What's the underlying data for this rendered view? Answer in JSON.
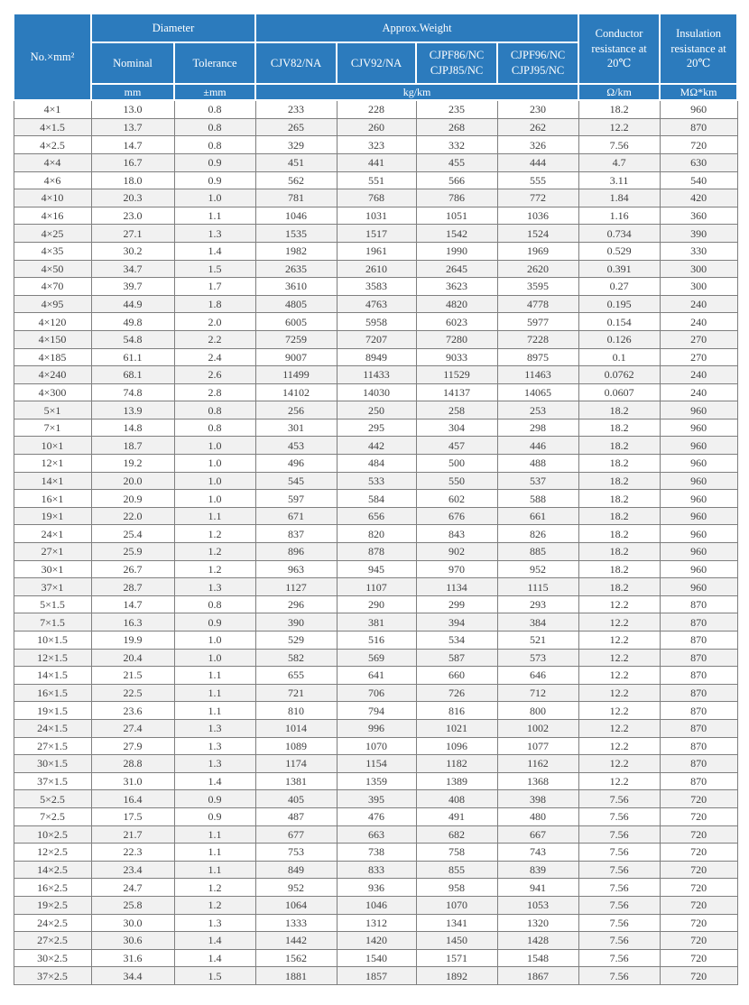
{
  "table": {
    "header": {
      "no_label": "No.×mm²",
      "diameter_group": "Diameter",
      "weight_group": "Approx.Weight",
      "sub_columns": {
        "nominal": "Nominal",
        "tolerance": "Tolerance",
        "cjv82": "CJV82/NA",
        "cjv92": "CJV92/NA",
        "cjpf86": "CJPF86/NC\nCJPJ85/NC",
        "cjpf96": "CJPF96/NC\nCJPJ95/NC"
      },
      "conductor_label": "Conductor resistance at 20℃",
      "insulation_label": "Insulation resistance at 20℃",
      "units": {
        "nominal": "mm",
        "tolerance": "±mm",
        "weight": "kg/km",
        "conductor": "Ω/km",
        "insulation": "MΩ*km"
      }
    },
    "colors": {
      "header_bg": "#2c7bbd",
      "header_text": "#ffffff",
      "row_bg": "#ffffff",
      "row_alt_bg": "#f1f1f1",
      "border": "#7f7f7f",
      "text": "#3f3f3f"
    },
    "rows": [
      [
        "4×1",
        "13.0",
        "0.8",
        "233",
        "228",
        "235",
        "230",
        "18.2",
        "960"
      ],
      [
        "4×1.5",
        "13.7",
        "0.8",
        "265",
        "260",
        "268",
        "262",
        "12.2",
        "870"
      ],
      [
        "4×2.5",
        "14.7",
        "0.8",
        "329",
        "323",
        "332",
        "326",
        "7.56",
        "720"
      ],
      [
        "4×4",
        "16.7",
        "0.9",
        "451",
        "441",
        "455",
        "444",
        "4.7",
        "630"
      ],
      [
        "4×6",
        "18.0",
        "0.9",
        "562",
        "551",
        "566",
        "555",
        "3.11",
        "540"
      ],
      [
        "4×10",
        "20.3",
        "1.0",
        "781",
        "768",
        "786",
        "772",
        "1.84",
        "420"
      ],
      [
        "4×16",
        "23.0",
        "1.1",
        "1046",
        "1031",
        "1051",
        "1036",
        "1.16",
        "360"
      ],
      [
        "4×25",
        "27.1",
        "1.3",
        "1535",
        "1517",
        "1542",
        "1524",
        "0.734",
        "390"
      ],
      [
        "4×35",
        "30.2",
        "1.4",
        "1982",
        "1961",
        "1990",
        "1969",
        "0.529",
        "330"
      ],
      [
        "4×50",
        "34.7",
        "1.5",
        "2635",
        "2610",
        "2645",
        "2620",
        "0.391",
        "300"
      ],
      [
        "4×70",
        "39.7",
        "1.7",
        "3610",
        "3583",
        "3623",
        "3595",
        "0.27",
        "300"
      ],
      [
        "4×95",
        "44.9",
        "1.8",
        "4805",
        "4763",
        "4820",
        "4778",
        "0.195",
        "240"
      ],
      [
        "4×120",
        "49.8",
        "2.0",
        "6005",
        "5958",
        "6023",
        "5977",
        "0.154",
        "240"
      ],
      [
        "4×150",
        "54.8",
        "2.2",
        "7259",
        "7207",
        "7280",
        "7228",
        "0.126",
        "270"
      ],
      [
        "4×185",
        "61.1",
        "2.4",
        "9007",
        "8949",
        "9033",
        "8975",
        "0.1",
        "270"
      ],
      [
        "4×240",
        "68.1",
        "2.6",
        "11499",
        "11433",
        "11529",
        "11463",
        "0.0762",
        "240"
      ],
      [
        "4×300",
        "74.8",
        "2.8",
        "14102",
        "14030",
        "14137",
        "14065",
        "0.0607",
        "240"
      ],
      [
        "5×1",
        "13.9",
        "0.8",
        "256",
        "250",
        "258",
        "253",
        "18.2",
        "960"
      ],
      [
        "7×1",
        "14.8",
        "0.8",
        "301",
        "295",
        "304",
        "298",
        "18.2",
        "960"
      ],
      [
        "10×1",
        "18.7",
        "1.0",
        "453",
        "442",
        "457",
        "446",
        "18.2",
        "960"
      ],
      [
        "12×1",
        "19.2",
        "1.0",
        "496",
        "484",
        "500",
        "488",
        "18.2",
        "960"
      ],
      [
        "14×1",
        "20.0",
        "1.0",
        "545",
        "533",
        "550",
        "537",
        "18.2",
        "960"
      ],
      [
        "16×1",
        "20.9",
        "1.0",
        "597",
        "584",
        "602",
        "588",
        "18.2",
        "960"
      ],
      [
        "19×1",
        "22.0",
        "1.1",
        "671",
        "656",
        "676",
        "661",
        "18.2",
        "960"
      ],
      [
        "24×1",
        "25.4",
        "1.2",
        "837",
        "820",
        "843",
        "826",
        "18.2",
        "960"
      ],
      [
        "27×1",
        "25.9",
        "1.2",
        "896",
        "878",
        "902",
        "885",
        "18.2",
        "960"
      ],
      [
        "30×1",
        "26.7",
        "1.2",
        "963",
        "945",
        "970",
        "952",
        "18.2",
        "960"
      ],
      [
        "37×1",
        "28.7",
        "1.3",
        "1127",
        "1107",
        "1134",
        "1115",
        "18.2",
        "960"
      ],
      [
        "5×1.5",
        "14.7",
        "0.8",
        "296",
        "290",
        "299",
        "293",
        "12.2",
        "870"
      ],
      [
        "7×1.5",
        "16.3",
        "0.9",
        "390",
        "381",
        "394",
        "384",
        "12.2",
        "870"
      ],
      [
        "10×1.5",
        "19.9",
        "1.0",
        "529",
        "516",
        "534",
        "521",
        "12.2",
        "870"
      ],
      [
        "12×1.5",
        "20.4",
        "1.0",
        "582",
        "569",
        "587",
        "573",
        "12.2",
        "870"
      ],
      [
        "14×1.5",
        "21.5",
        "1.1",
        "655",
        "641",
        "660",
        "646",
        "12.2",
        "870"
      ],
      [
        "16×1.5",
        "22.5",
        "1.1",
        "721",
        "706",
        "726",
        "712",
        "12.2",
        "870"
      ],
      [
        "19×1.5",
        "23.6",
        "1.1",
        "810",
        "794",
        "816",
        "800",
        "12.2",
        "870"
      ],
      [
        "24×1.5",
        "27.4",
        "1.3",
        "1014",
        "996",
        "1021",
        "1002",
        "12.2",
        "870"
      ],
      [
        "27×1.5",
        "27.9",
        "1.3",
        "1089",
        "1070",
        "1096",
        "1077",
        "12.2",
        "870"
      ],
      [
        "30×1.5",
        "28.8",
        "1.3",
        "1174",
        "1154",
        "1182",
        "1162",
        "12.2",
        "870"
      ],
      [
        "37×1.5",
        "31.0",
        "1.4",
        "1381",
        "1359",
        "1389",
        "1368",
        "12.2",
        "870"
      ],
      [
        "5×2.5",
        "16.4",
        "0.9",
        "405",
        "395",
        "408",
        "398",
        "7.56",
        "720"
      ],
      [
        "7×2.5",
        "17.5",
        "0.9",
        "487",
        "476",
        "491",
        "480",
        "7.56",
        "720"
      ],
      [
        "10×2.5",
        "21.7",
        "1.1",
        "677",
        "663",
        "682",
        "667",
        "7.56",
        "720"
      ],
      [
        "12×2.5",
        "22.3",
        "1.1",
        "753",
        "738",
        "758",
        "743",
        "7.56",
        "720"
      ],
      [
        "14×2.5",
        "23.4",
        "1.1",
        "849",
        "833",
        "855",
        "839",
        "7.56",
        "720"
      ],
      [
        "16×2.5",
        "24.7",
        "1.2",
        "952",
        "936",
        "958",
        "941",
        "7.56",
        "720"
      ],
      [
        "19×2.5",
        "25.8",
        "1.2",
        "1064",
        "1046",
        "1070",
        "1053",
        "7.56",
        "720"
      ],
      [
        "24×2.5",
        "30.0",
        "1.3",
        "1333",
        "1312",
        "1341",
        "1320",
        "7.56",
        "720"
      ],
      [
        "27×2.5",
        "30.6",
        "1.4",
        "1442",
        "1420",
        "1450",
        "1428",
        "7.56",
        "720"
      ],
      [
        "30×2.5",
        "31.6",
        "1.4",
        "1562",
        "1540",
        "1571",
        "1548",
        "7.56",
        "720"
      ],
      [
        "37×2.5",
        "34.4",
        "1.5",
        "1881",
        "1857",
        "1892",
        "1867",
        "7.56",
        "720"
      ]
    ],
    "column_names": [
      "spec-no",
      "diameter-nominal",
      "diameter-tolerance",
      "weight-cjv82",
      "weight-cjv92",
      "weight-cjpf86",
      "weight-cjpf96",
      "conductor-resistance",
      "insulation-resistance"
    ]
  }
}
